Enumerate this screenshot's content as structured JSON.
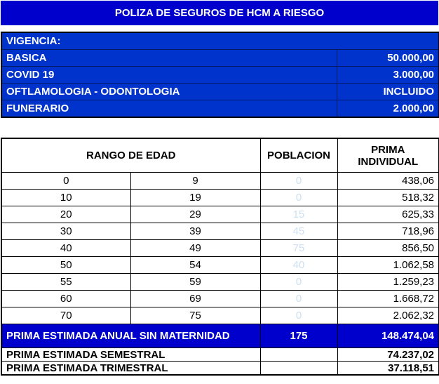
{
  "title": "POLIZA DE SEGUROS DE HCM A RIESGO",
  "vigencia": {
    "label": "VIGENCIA:",
    "items": [
      {
        "label": "BASICA",
        "value": "50.000,00"
      },
      {
        "label": "COVID 19",
        "value": "3.000,00"
      },
      {
        "label": "OFTLAMOLOGIA - ODONTOLOGIA",
        "value": "INCLUIDO"
      },
      {
        "label": "FUNERARIO",
        "value": "2.000,00"
      }
    ]
  },
  "table": {
    "headers": {
      "rango": "RANGO DE EDAD",
      "poblacion": "POBLACION",
      "prima_1": "PRIMA",
      "prima_2": "INDIVIDUAL"
    },
    "rows": [
      {
        "from": "0",
        "to": "9",
        "poblacion": "0",
        "prima": "438,06"
      },
      {
        "from": "10",
        "to": "19",
        "poblacion": "0",
        "prima": "518,32"
      },
      {
        "from": "20",
        "to": "29",
        "poblacion": "15",
        "prima": "625,33"
      },
      {
        "from": "30",
        "to": "39",
        "poblacion": "45",
        "prima": "718,96"
      },
      {
        "from": "40",
        "to": "49",
        "poblacion": "75",
        "prima": "856,50"
      },
      {
        "from": "50",
        "to": "54",
        "poblacion": "40",
        "prima": "1.062,58"
      },
      {
        "from": "55",
        "to": "59",
        "poblacion": "0",
        "prima": "1.259,23"
      },
      {
        "from": "60",
        "to": "69",
        "poblacion": "0",
        "prima": "1.668,72"
      },
      {
        "from": "70",
        "to": "75",
        "poblacion": "0",
        "prima": "2.062,32"
      }
    ],
    "total": {
      "label": "PRIMA ESTIMADA ANUAL SIN MATERNIDAD",
      "poblacion": "175",
      "value": "148.474,04"
    },
    "semestral": {
      "label": "PRIMA ESTIMADA SEMESTRAL",
      "value": "74.237,02"
    },
    "trimestral": {
      "label": "PRIMA ESTIMADA TRIMESTRAL",
      "value": "37.118,51"
    }
  }
}
